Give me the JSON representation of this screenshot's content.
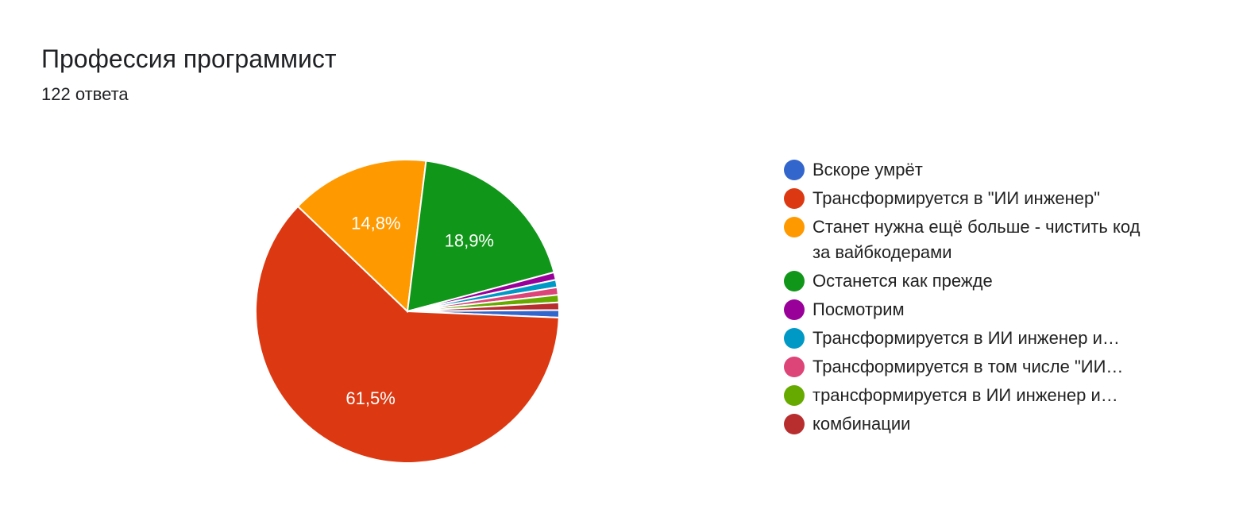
{
  "header": {
    "title": "Профессия программист",
    "response_count": "122 ответа"
  },
  "chart_data": {
    "type": "pie",
    "title": "Профессия программист",
    "subtitle": "122 ответа",
    "legend_position": "right",
    "categories": [
      "Вскоре умрёт",
      "Трансформируется в \"ИИ инженер\"",
      "Станет нужна ещё больше - чистить код за вайбкодерами",
      "Останется как прежде",
      "Посмотрим",
      "Трансформируется в ИИ инженер и…",
      "Трансформируется в том числе \"ИИ…",
      "трансформируется в ИИ инженер и…",
      "комбинации"
    ],
    "values": [
      0.8,
      61.5,
      14.8,
      18.9,
      0.8,
      0.8,
      0.8,
      0.8,
      0.8
    ],
    "counts": [
      1,
      75,
      18,
      23,
      1,
      1,
      1,
      1,
      1
    ],
    "colors": [
      "#3366cc",
      "#dc3912",
      "#ff9900",
      "#109618",
      "#990099",
      "#0099c6",
      "#dd4477",
      "#66aa00",
      "#b82e2e"
    ],
    "labels_shown": [
      "",
      "61,5%",
      "14,8%",
      "18,9%",
      "",
      "",
      "",
      "",
      ""
    ]
  },
  "legend": {
    "items": [
      {
        "label": "Вскоре умрёт",
        "color": "#3366cc"
      },
      {
        "label": "Трансформируется в \"ИИ инженер\"",
        "color": "#dc3912"
      },
      {
        "label": "Станет нужна ещё больше - чистить код за вайбкодерами",
        "color": "#ff9900"
      },
      {
        "label": "Останется как прежде",
        "color": "#109618"
      },
      {
        "label": "Посмотрим",
        "color": "#990099"
      },
      {
        "label": "Трансформируется в ИИ инженер и…",
        "color": "#0099c6"
      },
      {
        "label": "Трансформируется в том числе \"ИИ…",
        "color": "#dd4477"
      },
      {
        "label": "трансформируется в ИИ инженер и…",
        "color": "#66aa00"
      },
      {
        "label": "комбинации",
        "color": "#b82e2e"
      }
    ]
  }
}
